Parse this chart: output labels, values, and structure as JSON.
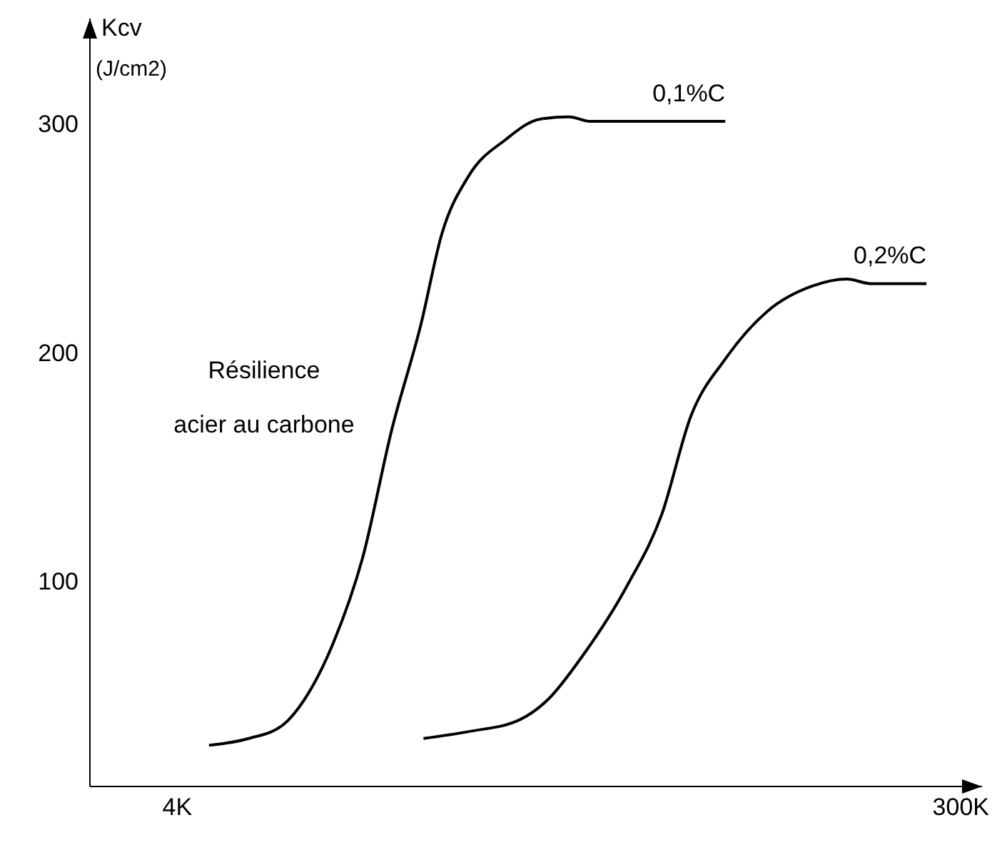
{
  "chart_data": {
    "type": "line",
    "ylabel": "Kcv (J/cm2)",
    "annotations": [
      "Résilience acier au carbone"
    ],
    "xlim": [
      -29,
      308
    ],
    "xticks": [
      {
        "value": 4,
        "label": "4K"
      },
      {
        "value": 300,
        "label": "300K"
      }
    ],
    "ylim": [
      10,
      346
    ],
    "yticks": [
      100,
      200,
      300
    ],
    "grid": false,
    "legend": false,
    "marker": "none",
    "line_style": "solid",
    "series": [
      {
        "name": "0,1%C",
        "color": "#000000",
        "x": [
          16,
          31,
          44,
          52,
          63,
          74,
          85,
          96,
          104,
          114,
          128,
          141,
          152,
          160,
          190,
          211
        ],
        "values": [
          28,
          31,
          37,
          48,
          73,
          110,
          166,
          212,
          252,
          277,
          293,
          302,
          303,
          301,
          301,
          301
        ]
      },
      {
        "name": "0,2%C",
        "color": "#000000",
        "x": [
          97,
          114,
          133,
          144,
          157,
          174,
          187,
          198,
          211,
          227,
          244,
          257,
          266,
          287
        ],
        "values": [
          31,
          34,
          39,
          48,
          67,
          98,
          129,
          172,
          197,
          218,
          229,
          232,
          230,
          230
        ]
      }
    ]
  }
}
